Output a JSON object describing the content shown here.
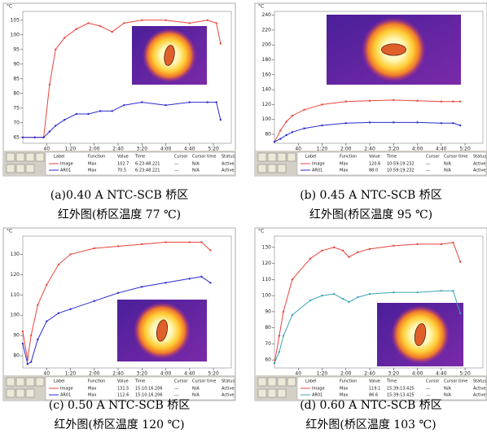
{
  "chart_data": [
    {
      "type": "line",
      "y_label": "°C",
      "caption": [
        "(a)0.40 A NTC-SCB 桥区",
        "红外图(桥区温度 77 ℃)"
      ],
      "xlim": [
        0,
        350
      ],
      "ylim": [
        63,
        108
      ],
      "yticks": [
        65,
        70,
        75,
        80,
        85,
        90,
        95,
        100,
        105
      ],
      "xticks": [
        40,
        {
          "value": 80,
          "label": "1:20"
        },
        {
          "value": 120,
          "label": "2:00"
        },
        {
          "value": 160,
          "label": "2:40"
        },
        {
          "value": 200,
          "label": "3:20"
        },
        {
          "value": 240,
          "label": "4:00"
        },
        {
          "value": 280,
          "label": "4:40"
        },
        {
          "value": 320,
          "label": "5:20"
        }
      ],
      "x": [
        0,
        20,
        35,
        45,
        55,
        70,
        90,
        110,
        130,
        150,
        170,
        200,
        240,
        280,
        310,
        325,
        332
      ],
      "series": [
        {
          "name": "Image",
          "color": "#e8453c",
          "values": [
            65,
            65,
            65,
            83,
            95,
            99,
            102,
            104,
            103,
            101,
            104,
            105,
            105,
            104,
            105,
            104,
            97
          ]
        },
        {
          "name": "AR01",
          "color": "#2b2bd0",
          "values": [
            65,
            65,
            65,
            67,
            69,
            71,
            73,
            73,
            74,
            74,
            76,
            77,
            76,
            77,
            77,
            77,
            71
          ]
        }
      ],
      "table": {
        "columns": [
          "Label",
          "Function",
          "Value",
          "Time",
          "Cursor",
          "Cursor time",
          "Status"
        ],
        "rows": [
          [
            "Max",
            "102.7",
            "6:23:48.221",
            "---",
            "N/A",
            "Active"
          ],
          [
            "Max",
            "70.5",
            "6:23:48.221",
            "---",
            "N/A",
            "Active"
          ]
        ]
      }
    },
    {
      "type": "line",
      "y_label": "°C",
      "caption": [
        "(b) 0.45 A NTC-SCB 桥区",
        "红外图(桥区温度 95 ℃)"
      ],
      "xlim": [
        0,
        350
      ],
      "ylim": [
        68,
        245
      ],
      "yticks": [
        80,
        100,
        120,
        140,
        160,
        180,
        200,
        220,
        240
      ],
      "xticks": [
        40,
        {
          "value": 80,
          "label": "1:20"
        },
        {
          "value": 120,
          "label": "2:00"
        },
        {
          "value": 160,
          "label": "2:40"
        },
        {
          "value": 200,
          "label": "3:20"
        },
        {
          "value": 240,
          "label": "4:00"
        },
        {
          "value": 280,
          "label": "4:40"
        },
        {
          "value": 320,
          "label": "5:20"
        }
      ],
      "x": [
        0,
        10,
        20,
        30,
        50,
        80,
        120,
        160,
        200,
        240,
        280,
        300,
        312
      ],
      "series": [
        {
          "name": "Image",
          "color": "#e8453c",
          "values": [
            70,
            85,
            97,
            105,
            113,
            120,
            124,
            125,
            126,
            125,
            124,
            124,
            124
          ]
        },
        {
          "name": "AR01",
          "color": "#2b2bd0",
          "values": [
            70,
            74,
            79,
            83,
            88,
            92,
            95,
            96,
            96,
            96,
            95,
            95,
            92
          ]
        }
      ],
      "table": {
        "columns": [
          "Label",
          "Function",
          "Value",
          "Time",
          "Cursor",
          "Cursor time",
          "Status"
        ],
        "rows": [
          [
            "Max",
            "120.6",
            "10:59:19.232",
            "---",
            "N/A",
            "Active"
          ],
          [
            "Max",
            "88.0",
            "10:59:19.232",
            "---",
            "N/A",
            "Active"
          ]
        ]
      }
    },
    {
      "type": "line",
      "y_label": "°C",
      "caption": [
        "(c) 0.50 A NTC-SCB 桥区",
        "红外图(桥区温度 120 ℃)"
      ],
      "xlim": [
        0,
        350
      ],
      "ylim": [
        74,
        139
      ],
      "yticks": [
        80,
        90,
        100,
        110,
        120,
        130
      ],
      "xticks": [
        40,
        {
          "value": 80,
          "label": "1:20"
        },
        {
          "value": 120,
          "label": "2:00"
        },
        {
          "value": 160,
          "label": "2:40"
        },
        {
          "value": 200,
          "label": "3:20"
        },
        {
          "value": 240,
          "label": "4:00"
        },
        {
          "value": 280,
          "label": "4:40"
        },
        {
          "value": 320,
          "label": "5:20"
        }
      ],
      "x": [
        0,
        8,
        14,
        25,
        40,
        60,
        80,
        120,
        160,
        200,
        240,
        280,
        300,
        315
      ],
      "series": [
        {
          "name": "Image",
          "color": "#e8453c",
          "values": [
            92,
            78,
            90,
            105,
            115,
            125,
            130,
            133,
            134,
            135,
            136,
            136,
            136,
            132
          ]
        },
        {
          "name": "AR01",
          "color": "#2b2bd0",
          "values": [
            86,
            76,
            77,
            88,
            97,
            101,
            103,
            107,
            111,
            114,
            116,
            118,
            119,
            116
          ]
        }
      ],
      "table": {
        "columns": [
          "Label",
          "Function",
          "Value",
          "Time",
          "Cursor",
          "Cursor time",
          "Status"
        ],
        "rows": [
          [
            "Max",
            "131.5",
            "15:10:16.206",
            "---",
            "N/A",
            "Active"
          ],
          [
            "Max",
            "112.6",
            "15:10:16.206",
            "---",
            "N/A",
            "Active"
          ]
        ]
      }
    },
    {
      "type": "line",
      "y_label": "°C",
      "caption": [
        "(d) 0.60 A NTC-SCB 桥区",
        "红外图(桥区温度 103 ℃)"
      ],
      "xlim": [
        0,
        350
      ],
      "ylim": [
        55,
        137
      ],
      "yticks": [
        60,
        70,
        80,
        90,
        100,
        110,
        120,
        130
      ],
      "xticks": [
        40,
        {
          "value": 80,
          "label": "1:20"
        },
        {
          "value": 120,
          "label": "2:00"
        },
        {
          "value": 160,
          "label": "2:40"
        },
        {
          "value": 200,
          "label": "3:20"
        },
        {
          "value": 240,
          "label": "4:00"
        },
        {
          "value": 280,
          "label": "4:40"
        },
        {
          "value": 320,
          "label": "5:20"
        }
      ],
      "x": [
        0,
        8,
        15,
        30,
        60,
        80,
        100,
        115,
        125,
        140,
        160,
        200,
        240,
        280,
        300,
        312
      ],
      "series": [
        {
          "name": "Image",
          "color": "#e8453c",
          "values": [
            58,
            75,
            90,
            110,
            123,
            128,
            130,
            128,
            124,
            127,
            129,
            131,
            132,
            132,
            133,
            121
          ]
        },
        {
          "name": "AR01",
          "color": "#3aa6b8",
          "values": [
            58,
            65,
            75,
            88,
            97,
            100,
            101,
            98,
            96,
            99,
            101,
            102,
            102,
            103,
            103,
            89
          ]
        }
      ],
      "table": {
        "columns": [
          "Label",
          "Function",
          "Value",
          "Time",
          "Cursor",
          "Cursor time",
          "Status"
        ],
        "rows": [
          [
            "Max",
            "119.1",
            "15:39:13.425",
            "---",
            "N/A",
            "Active"
          ],
          [
            "Max",
            "86.6",
            "15:39:13.425",
            "---",
            "N/A",
            "Active"
          ]
        ]
      }
    }
  ]
}
